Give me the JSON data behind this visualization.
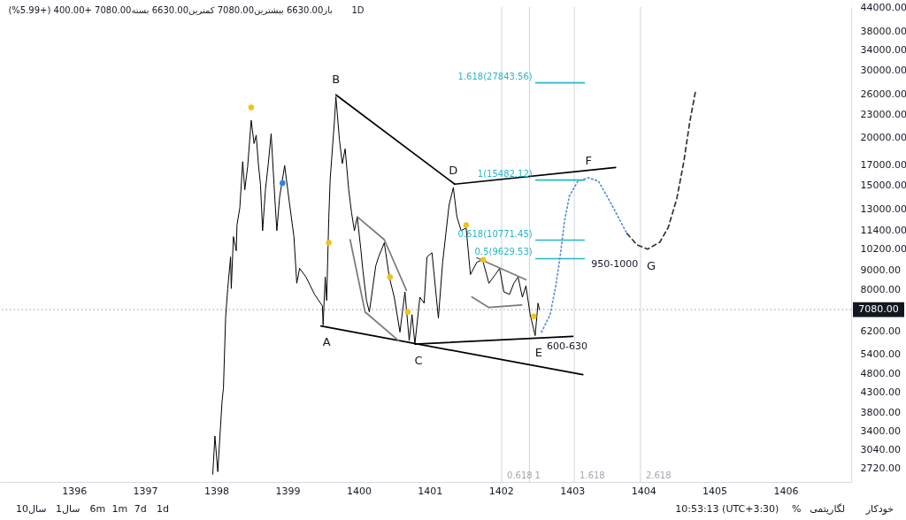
{
  "chart_data": {
    "type": "line",
    "title": "1D",
    "subtitle": "باز6630.00 بیشترین7080.00 کمترین6630.00 بسته7080.00 +400.00 (+5.99%)",
    "log": true,
    "xlim": [
      1394.96,
      1406.92
    ],
    "xticks": [
      1396,
      1397,
      1398,
      1399,
      1400,
      1401,
      1402,
      1403,
      1404,
      1405,
      1406
    ],
    "ylim": [
      2500,
      44000
    ],
    "yticks": [
      {
        "value": 2720,
        "label": "2720.00"
      },
      {
        "value": 3040,
        "label": "3040.00"
      },
      {
        "value": 3400,
        "label": "3400.00"
      },
      {
        "value": 3800,
        "label": "3800.00"
      },
      {
        "value": 4300,
        "label": "4300.00"
      },
      {
        "value": 4800,
        "label": "4800.00"
      },
      {
        "value": 5400,
        "label": "5400.00"
      },
      {
        "value": 6200,
        "label": "6200.00"
      },
      {
        "value": 8000,
        "label": "8000.00"
      },
      {
        "value": 9000,
        "label": "9000.00"
      },
      {
        "value": 10200,
        "label": "10200.00"
      },
      {
        "value": 11400,
        "label": "11400.00"
      },
      {
        "value": 13000,
        "label": "13000.00"
      },
      {
        "value": 15000,
        "label": "15000.00"
      },
      {
        "value": 17000,
        "label": "17000.00"
      },
      {
        "value": 20000,
        "label": "20000.00"
      },
      {
        "value": 23000,
        "label": "23000.00"
      },
      {
        "value": 26000,
        "label": "26000.00"
      },
      {
        "value": 30000,
        "label": "30000.00"
      },
      {
        "value": 34000,
        "label": "34000.00"
      },
      {
        "value": 38000,
        "label": "38000.00"
      },
      {
        "value": 44000,
        "label": "44000.00"
      }
    ],
    "series": [
      {
        "color": "#000000",
        "x": [
          1397.95,
          1397.98,
          1398.02,
          1398.08,
          1398.1,
          1398.13,
          1398.16,
          1398.2,
          1398.21,
          1398.24,
          1398.28,
          1398.29,
          1398.33,
          1398.37,
          1398.4,
          1398.44,
          1398.49,
          1398.53,
          1398.56,
          1398.59,
          1398.62,
          1398.65,
          1398.69,
          1398.73,
          1398.77,
          1398.81,
          1398.85,
          1398.89,
          1398.96,
          1399.02,
          1399.09,
          1399.13,
          1399.17,
          1399.26,
          1399.38,
          1399.49,
          1399.5,
          1399.53,
          1399.55,
          1399.58,
          1399.6,
          1399.66,
          1399.68,
          1399.73,
          1399.77,
          1399.81,
          1399.86,
          1399.9,
          1399.94,
          1399.98,
          1400.03,
          1400.06,
          1400.11,
          1400.15,
          1400.24,
          1400.28,
          1400.36,
          1400.43,
          1400.5,
          1400.58,
          1400.65,
          1400.71,
          1400.75,
          1400.79,
          1400.86,
          1400.92,
          1400.96,
          1401.03,
          1401.12,
          1401.18,
          1401.27,
          1401.33,
          1401.38,
          1401.44,
          1401.51,
          1401.57,
          1401.66,
          1401.74,
          1401.83,
          1401.92,
          1401.98,
          1402.04,
          1402.12,
          1402.18,
          1402.24,
          1402.3,
          1402.35,
          1402.41,
          1402.48,
          1402.52,
          1402.54
        ],
        "values": [
          2620,
          3300,
          2660,
          4060,
          4420,
          6730,
          8040,
          9730,
          8040,
          11000,
          10100,
          11800,
          13100,
          17300,
          14600,
          16800,
          22200,
          19300,
          20300,
          17100,
          15100,
          11400,
          14600,
          17100,
          20500,
          15100,
          11400,
          14000,
          16900,
          13800,
          11000,
          8300,
          9080,
          8620,
          7760,
          7240,
          6450,
          8620,
          7480,
          12300,
          15600,
          22200,
          25600,
          19700,
          17100,
          18700,
          14600,
          12700,
          11400,
          12400,
          10200,
          8940,
          7480,
          6980,
          9220,
          9730,
          10600,
          8620,
          7630,
          6180,
          7880,
          5870,
          6870,
          5750,
          7630,
          7360,
          9730,
          9980,
          6730,
          9420,
          13300,
          14800,
          12400,
          11400,
          11600,
          8750,
          9420,
          9570,
          8300,
          8750,
          9080,
          7880,
          7760,
          8300,
          8620,
          7630,
          8170,
          6870,
          6050,
          7360,
          7080
        ]
      },
      {
        "color": "#000000",
        "x": [
          1399.68,
          1401.35
        ],
        "values": [
          25900,
          15100
        ]
      },
      {
        "color": "#000000",
        "x": [
          1401.35,
          1403.61
        ],
        "values": [
          15100,
          16700
        ]
      },
      {
        "color": "#000000",
        "x": [
          1399.47,
          1403.15
        ],
        "values": [
          6410,
          4780
        ]
      },
      {
        "color": "#000000",
        "x": [
          1400.79,
          1403.01
        ],
        "values": [
          5750,
          6020
        ]
      },
      {
        "color": "#7a7a7a",
        "x": [
          1399.98,
          1400.36,
          1400.67
        ],
        "values": [
          12400,
          10800,
          7960
        ]
      },
      {
        "color": "#7a7a7a",
        "x": [
          1399.88,
          1400.09,
          1400.56
        ],
        "values": [
          10800,
          6980,
          5870
        ]
      },
      {
        "color": "#7a7a7a",
        "x": [
          1401.66,
          1402.35
        ],
        "values": [
          9680,
          8480
        ]
      },
      {
        "color": "#7a7a7a",
        "x": [
          1401.59,
          1401.83,
          1402.29
        ],
        "values": [
          7640,
          7170,
          7280
        ]
      },
      {
        "color": "#5b8ed6",
        "line_style": "dotted",
        "x": [
          1402.57,
          1402.69,
          1402.77,
          1402.83,
          1402.89,
          1402.96,
          1403.08,
          1403.23,
          1403.37,
          1403.51,
          1403.64,
          1403.77
        ],
        "values": [
          6180,
          6870,
          8170,
          9730,
          12000,
          14050,
          15370,
          15700,
          15370,
          13830,
          12450,
          11210
        ]
      },
      {
        "color": "#333333",
        "line_style": "dashed",
        "x": [
          1403.77,
          1403.91,
          1404.06,
          1404.23,
          1404.35,
          1404.47,
          1404.57,
          1404.65,
          1404.73
        ],
        "values": [
          11210,
          10470,
          10200,
          10630,
          11630,
          13830,
          17350,
          21860,
          26290
        ]
      },
      {
        "name": "1.618(27843.56)",
        "color": "#26b5c6",
        "x": [
          1402.49,
          1403.17
        ],
        "values": [
          27843.56,
          27843.56
        ]
      },
      {
        "name": "1(15482.12)",
        "color": "#26b5c6",
        "x": [
          1402.49,
          1403.17
        ],
        "values": [
          15482.12,
          15482.12
        ]
      },
      {
        "name": "0.618(10771.45)",
        "color": "#26b5c6",
        "x": [
          1402.49,
          1403.17
        ],
        "values": [
          10771.45,
          10771.45
        ]
      },
      {
        "name": "0.5(9629.53)",
        "color": "#26b5c6",
        "x": [
          1402.49,
          1403.17
        ],
        "values": [
          9629.53,
          9629.53
        ]
      },
      {
        "type": "scatter",
        "marker": "circle",
        "x": [
          1398.49,
          1398.93,
          1399.58,
          1400.44,
          1400.69,
          1401.51,
          1401.75,
          1402.46
        ],
        "values": [
          24000,
          15200,
          10600,
          8620,
          6980,
          11800,
          9570,
          6800
        ],
        "colors": [
          "#f0c21c",
          "#2e86de",
          "#f0c21c",
          "#f0c21c",
          "#f0c21c",
          "#f0c21c",
          "#f0c21c",
          "#f0c21c"
        ]
      }
    ],
    "ref_lines": [
      {
        "axis": "y",
        "value": 7080,
        "label": "7080.00",
        "color": "#9598a1",
        "line_style": "dotted"
      },
      {
        "axis": "x",
        "value": 1402.01,
        "color": "#d1d4dc"
      },
      {
        "axis": "x",
        "value": 1402.4,
        "color": "#d1d4dc"
      },
      {
        "axis": "x",
        "value": 1403.03,
        "color": "#d1d4dc"
      },
      {
        "axis": "x",
        "value": 1403.96,
        "color": "#d1d4dc"
      }
    ],
    "annotations": [
      {
        "text": "A",
        "x": 1399.5,
        "y": 6450
      },
      {
        "text": "B",
        "x": 1399.68,
        "y": 25600
      },
      {
        "text": "C",
        "x": 1400.79,
        "y": 5750
      },
      {
        "text": "D",
        "x": 1401.33,
        "y": 14800
      },
      {
        "text": "E",
        "x": 1402.48,
        "y": 6050
      },
      {
        "text": "F",
        "x": 1403.23,
        "y": 15700
      },
      {
        "text": "G",
        "x": 1404.06,
        "y": 10200
      },
      {
        "text": "950-1000",
        "x": 1403.17,
        "y": 9629.53
      },
      {
        "text": "600-630",
        "x": 1402.57,
        "y": 6180
      },
      {
        "text": "0.618",
        "x": 1402.01,
        "y": 2600
      },
      {
        "text": "1",
        "x": 1402.4,
        "y": 2600
      },
      {
        "text": "1.618",
        "x": 1403.03,
        "y": 2600
      },
      {
        "text": "2.618",
        "x": 1403.96,
        "y": 2600
      },
      "10سال",
      "1سال",
      "6m",
      "1m",
      "7d",
      "1d",
      "10:53:13 (UTC+3:30)",
      "%",
      "لگاریتمی",
      "خودکار"
    ]
  }
}
